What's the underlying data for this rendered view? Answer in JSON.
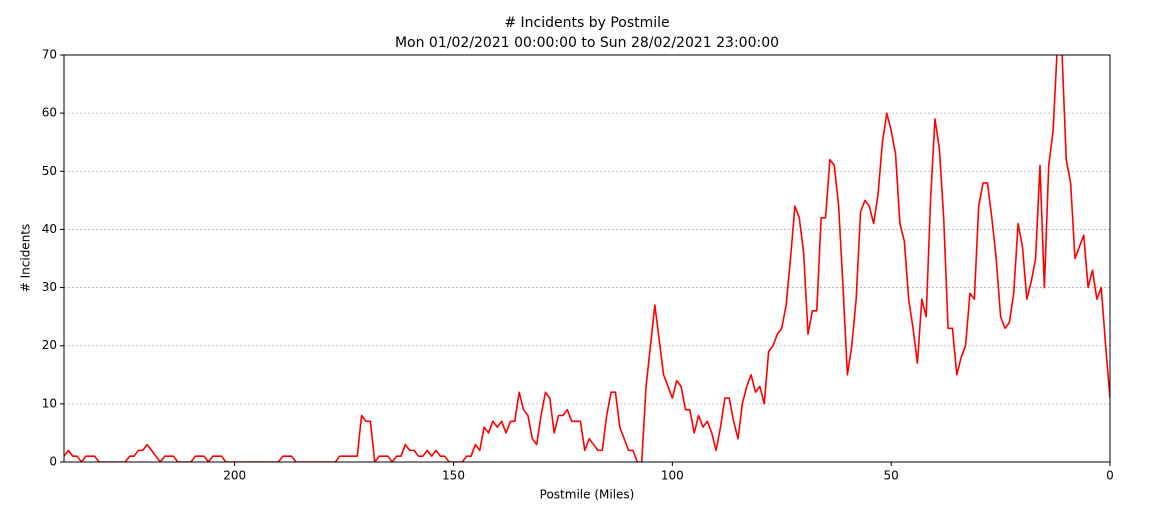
{
  "chart_data": {
    "type": "line",
    "title": "# Incidents by Postmile",
    "subtitle": "Mon 01/02/2021 00:00:00 to Sun 28/02/2021 23:00:00",
    "x_label": "Postmile (Miles)",
    "y_label": "# Incidents",
    "xlim": [
      239,
      0
    ],
    "ylim": [
      0,
      70
    ],
    "xticks": [
      200,
      150,
      100,
      50,
      0
    ],
    "yticks": [
      0,
      10,
      20,
      30,
      40,
      50,
      60,
      70
    ],
    "grid": true,
    "x": [
      239,
      238,
      237,
      236,
      235,
      234,
      233,
      232,
      231,
      230,
      229,
      228,
      227,
      226,
      225,
      224,
      223,
      222,
      221,
      220,
      219,
      218,
      217,
      216,
      215,
      214,
      213,
      212,
      211,
      210,
      209,
      208,
      207,
      206,
      205,
      204,
      203,
      202,
      201,
      200,
      199,
      198,
      197,
      196,
      195,
      194,
      193,
      192,
      191,
      190,
      189,
      188,
      187,
      186,
      185,
      184,
      183,
      182,
      181,
      180,
      179,
      178,
      177,
      176,
      175,
      174,
      173,
      172,
      171,
      170,
      169,
      168,
      167,
      166,
      165,
      164,
      163,
      162,
      161,
      160,
      159,
      158,
      157,
      156,
      155,
      154,
      153,
      152,
      151,
      150,
      149,
      148,
      147,
      146,
      145,
      144,
      143,
      142,
      141,
      140,
      139,
      138,
      137,
      136,
      135,
      134,
      133,
      132,
      131,
      130,
      129,
      128,
      127,
      126,
      125,
      124,
      123,
      122,
      121,
      120,
      119,
      118,
      117,
      116,
      115,
      114,
      113,
      112,
      111,
      110,
      109,
      108,
      107,
      106,
      105,
      104,
      103,
      102,
      101,
      100,
      99,
      98,
      97,
      96,
      95,
      94,
      93,
      92,
      91,
      90,
      89,
      88,
      87,
      86,
      85,
      84,
      83,
      82,
      81,
      80,
      79,
      78,
      77,
      76,
      75,
      74,
      73,
      72,
      71,
      70,
      69,
      68,
      67,
      66,
      65,
      64,
      63,
      62,
      61,
      60,
      59,
      58,
      57,
      56,
      55,
      54,
      53,
      52,
      51,
      50,
      49,
      48,
      47,
      46,
      45,
      44,
      43,
      42,
      41,
      40,
      39,
      38,
      37,
      36,
      35,
      34,
      33,
      32,
      31,
      30,
      29,
      28,
      27,
      26,
      25,
      24,
      23,
      22,
      21,
      20,
      19,
      18,
      17,
      16,
      15,
      14,
      13,
      12,
      11,
      10,
      9,
      8,
      7,
      6,
      5,
      4,
      3,
      2,
      1,
      0
    ],
    "series": [
      {
        "color": "#ff0000",
        "values": [
          1,
          2,
          1,
          1,
          0,
          1,
          1,
          1,
          0,
          0,
          0,
          0,
          0,
          0,
          0,
          1,
          1,
          2,
          2,
          3,
          2,
          1,
          0,
          1,
          1,
          1,
          0,
          0,
          0,
          0,
          1,
          1,
          1,
          0,
          1,
          1,
          1,
          0,
          0,
          0,
          0,
          0,
          0,
          0,
          0,
          0,
          0,
          0,
          0,
          0,
          1,
          1,
          1,
          0,
          0,
          0,
          0,
          0,
          0,
          0,
          0,
          0,
          0,
          1,
          1,
          1,
          1,
          1,
          8,
          7,
          7,
          0,
          1,
          1,
          1,
          0,
          1,
          1,
          3,
          2,
          2,
          1,
          1,
          2,
          1,
          2,
          1,
          1,
          0,
          0,
          0,
          0,
          1,
          1,
          3,
          2,
          6,
          5,
          7,
          6,
          7,
          5,
          7,
          7,
          12,
          9,
          8,
          4,
          3,
          8,
          12,
          11,
          5,
          8,
          8,
          9,
          7,
          7,
          7,
          2,
          4,
          3,
          2,
          2,
          8,
          12,
          12,
          6,
          4,
          2,
          2,
          0,
          0,
          13,
          20,
          27,
          21,
          15,
          13,
          11,
          14,
          13,
          9,
          9,
          5,
          8,
          6,
          7,
          5,
          2,
          6,
          11,
          11,
          7,
          4,
          10,
          13,
          15,
          12,
          13,
          10,
          19,
          20,
          22,
          23,
          27,
          35,
          44,
          42,
          36,
          22,
          26,
          26,
          42,
          42,
          52,
          51,
          44,
          30,
          15,
          20,
          28,
          43,
          45,
          44,
          41,
          46,
          55,
          60,
          57,
          53,
          41,
          38,
          28,
          23,
          17,
          28,
          25,
          45,
          59,
          54,
          42,
          23,
          23,
          15,
          18,
          20,
          29,
          28,
          44,
          48,
          48,
          42,
          35,
          25,
          23,
          24,
          29,
          41,
          37,
          28,
          31,
          35,
          51,
          30,
          51,
          57,
          72,
          71,
          52,
          48,
          35,
          37,
          39,
          30,
          33,
          28,
          30,
          20,
          11
        ]
      }
    ]
  }
}
